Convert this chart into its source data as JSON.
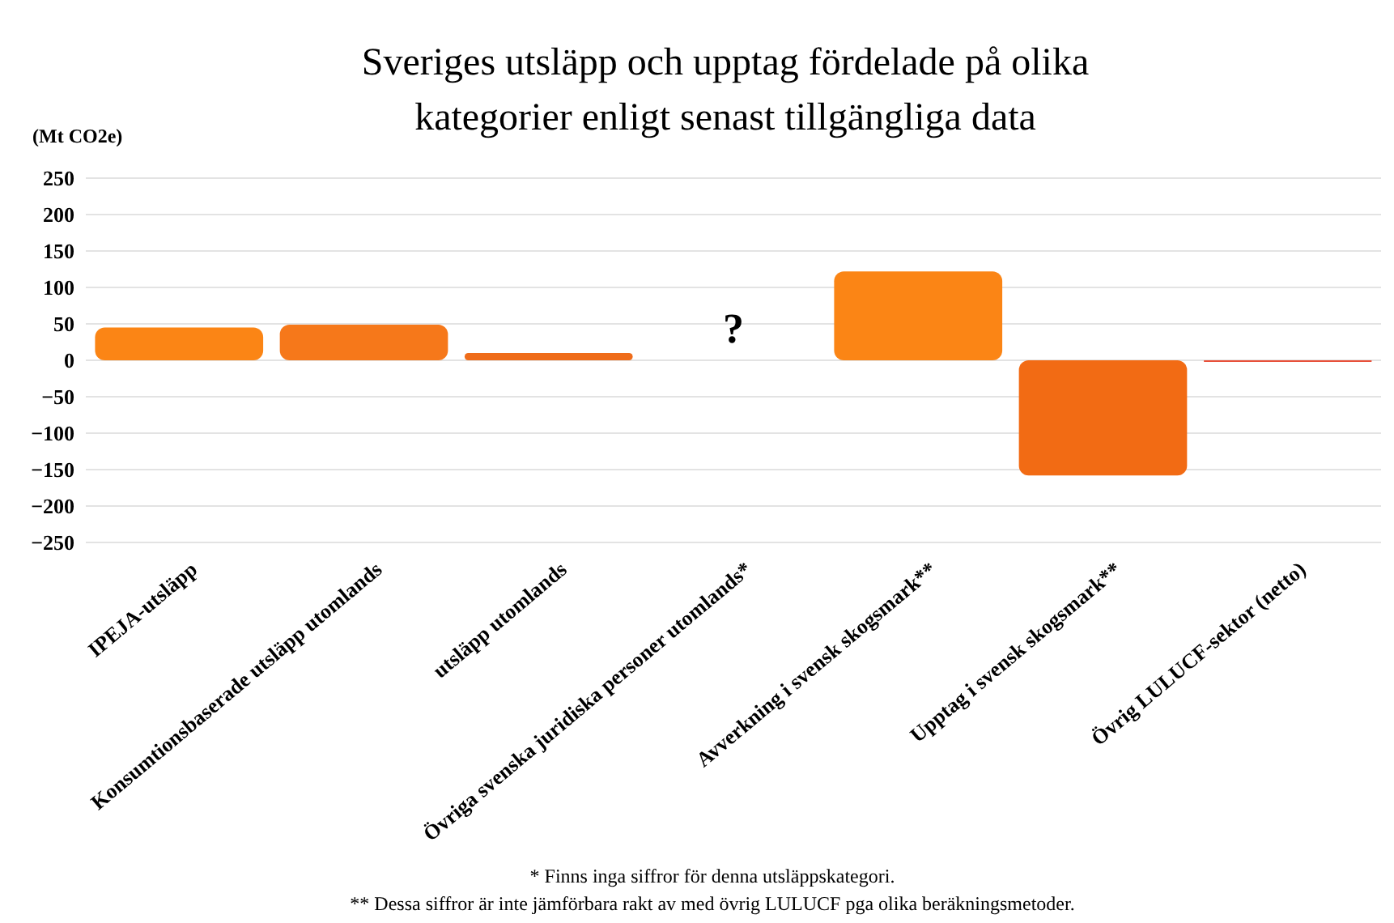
{
  "chart_data": {
    "type": "bar",
    "title": "Sveriges utsläpp och upptag fördelade på olika kategorier enligt senast tillgängliga data",
    "ylabel": "(Mt CO2e)",
    "categories": [
      "IPEJA-utsläpp",
      "Konsumtionsbaserade utsläpp utomlands",
      "utsläpp utomlands",
      "Övriga svenska juridiska personer utomlands*",
      "Avverkning i svensk skogsmark**",
      "Upptag i svensk skogsmark**",
      "Övrig LULUCF-sektor (netto)"
    ],
    "values": [
      45,
      49,
      10,
      null,
      122,
      -158,
      -2
    ],
    "colors": [
      "#fb8515",
      "#f6781a",
      "#ef6c1a",
      null,
      "#fb8515",
      "#f26b14",
      "#e8503a"
    ],
    "ylim": [
      -250,
      250
    ],
    "yticks": [
      -250,
      -200,
      -150,
      -100,
      -50,
      0,
      50,
      100,
      150,
      200,
      250
    ],
    "grid": "y",
    "annotations": [
      "?",
      "* Finns inga siffror för denna utsläppskategori.",
      "** Dessa siffror är inte jämförbara rakt av med övrig LULUCF pga olika beräkningsmetoder."
    ]
  }
}
